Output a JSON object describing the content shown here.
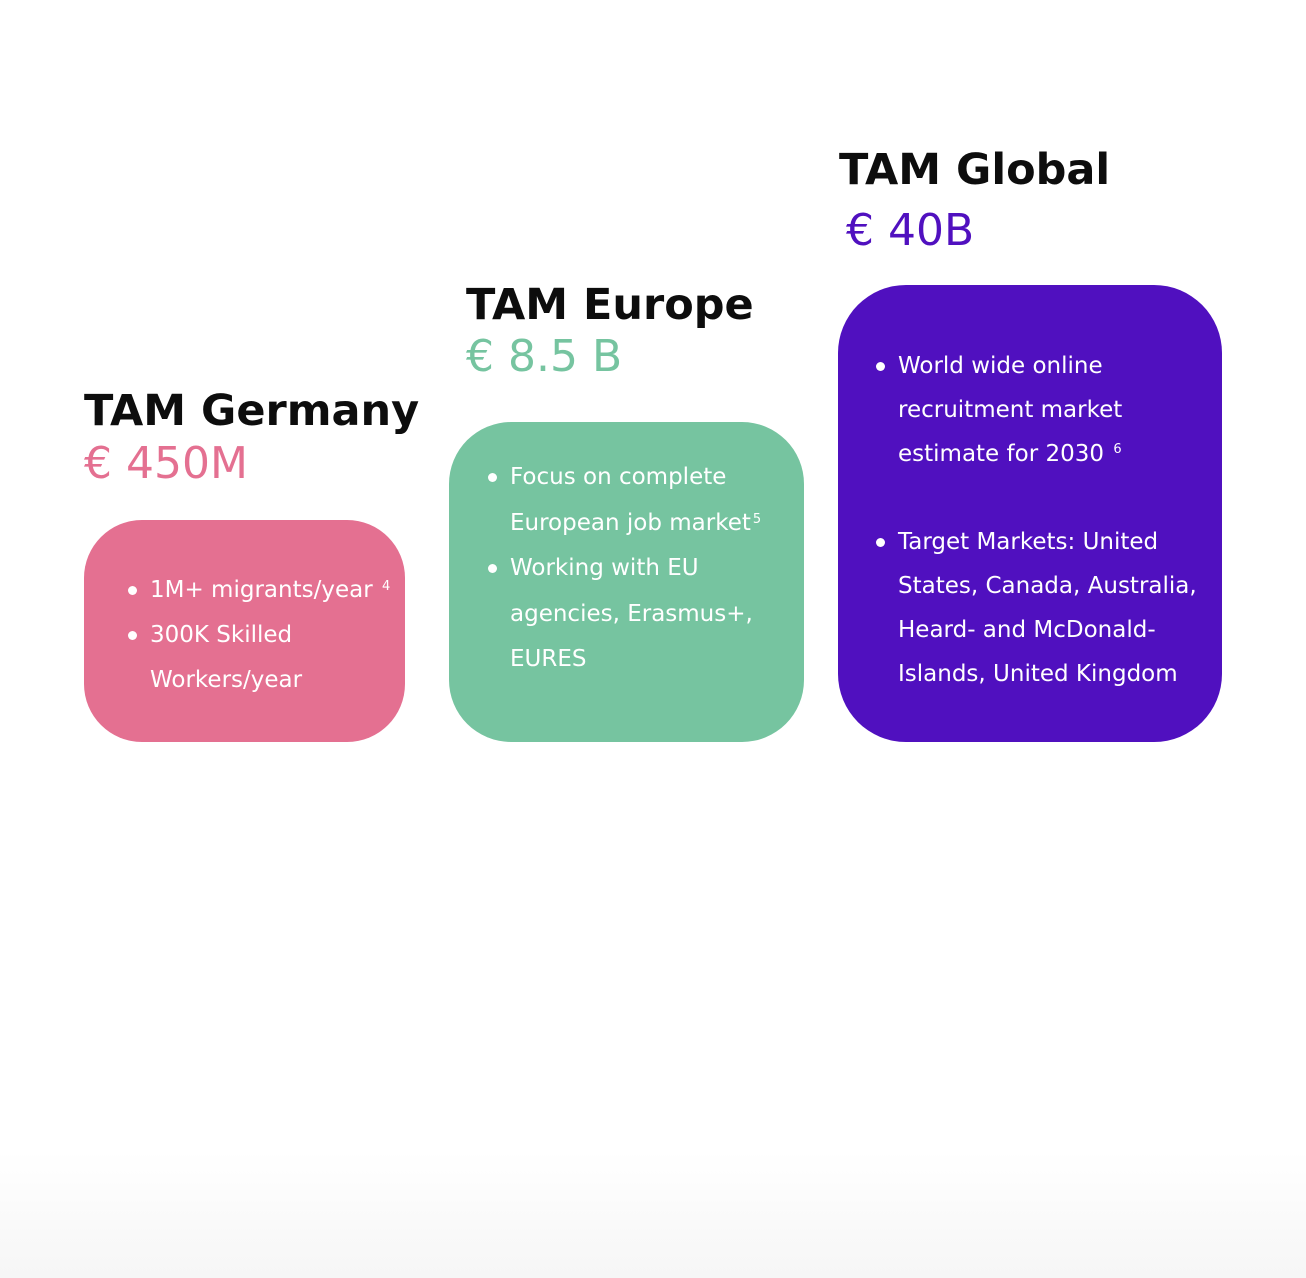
{
  "markets": [
    {
      "title": "TAM Germany",
      "amount": "€ 450M",
      "color": "#e47091",
      "bullets": [
        {
          "text": "1M+ migrants/year ",
          "sup": "4"
        },
        {
          "text": "300K Skilled\nWorkers/year",
          "sup": ""
        }
      ]
    },
    {
      "title": "TAM Europe",
      "amount": "€ 8.5 B",
      "color": "#76c4a0",
      "bullets": [
        {
          "text": "Focus on complete\nEuropean job market",
          "sup": "5"
        },
        {
          "text": "Working  with EU\nagencies, Erasmus+,\nEURES",
          "sup": ""
        }
      ]
    },
    {
      "title": "TAM Global",
      "amount": "€ 40B",
      "color": "#5010bf",
      "bullets": [
        {
          "text": " World wide online\nrecruitment market\nestimate for 2030 ",
          "sup": "6"
        },
        {
          "text": "Target Markets: United\nStates, Canada, Australia,\nHeard- and  McDonald-\nIslands, United Kingdom",
          "sup": ""
        }
      ]
    }
  ]
}
